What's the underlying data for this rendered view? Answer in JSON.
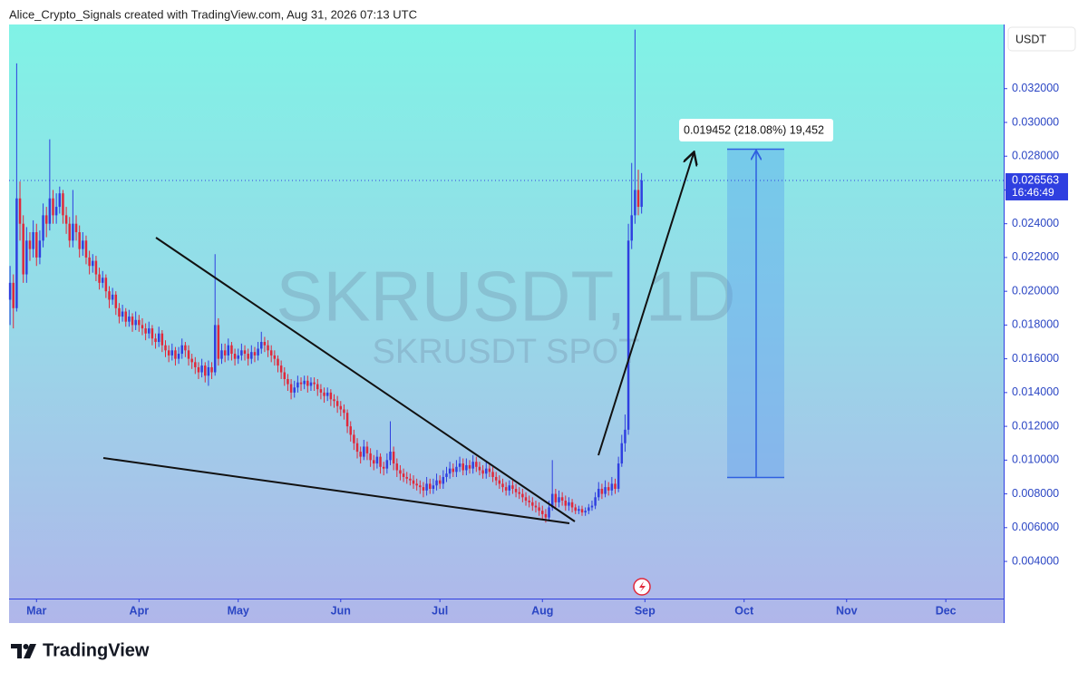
{
  "header": "Alice_Crypto_Signals created with TradingView.com, Aug 31, 2026 07:13 UTC",
  "footer_brand": "TradingView",
  "chart_data": {
    "type": "candlestick",
    "title": "SKRUSDT, 1D",
    "subtitle": "SKRUSDT SPOT",
    "currency": "USDT",
    "countdown": "16:46:49",
    "measure_label": "0.019452 (218.08%) 19,452",
    "up_color": "#2f3fe0",
    "down_color": "#e0283a",
    "xlim": [
      -0.3,
      300.5
    ],
    "xticks": [
      {
        "value": 8,
        "label": "Mar"
      },
      {
        "value": 39,
        "label": "Apr"
      },
      {
        "value": 69,
        "label": "May"
      },
      {
        "value": 100,
        "label": "Jun"
      },
      {
        "value": 130,
        "label": "Jul"
      },
      {
        "value": 161,
        "label": "Aug"
      },
      {
        "value": 192,
        "label": "Sep"
      },
      {
        "value": 222,
        "label": "Oct"
      },
      {
        "value": 253,
        "label": "Nov"
      },
      {
        "value": 283,
        "label": "Dec"
      }
    ],
    "ylim": [
      0.0018,
      0.0358
    ],
    "yticks": [
      {
        "value": 0.004,
        "label": "0.004000"
      },
      {
        "value": 0.006,
        "label": "0.006000"
      },
      {
        "value": 0.008,
        "label": "0.008000"
      },
      {
        "value": 0.01,
        "label": "0.010000"
      },
      {
        "value": 0.012,
        "label": "0.012000"
      },
      {
        "value": 0.014,
        "label": "0.014000"
      },
      {
        "value": 0.016,
        "label": "0.016000"
      },
      {
        "value": 0.018,
        "label": "0.018000"
      },
      {
        "value": 0.02,
        "label": "0.020000"
      },
      {
        "value": 0.022,
        "label": "0.022000"
      },
      {
        "value": 0.024,
        "label": "0.024000"
      },
      {
        "value": 0.026,
        "label": "0.026000"
      },
      {
        "value": 0.028,
        "label": "0.028000"
      },
      {
        "value": 0.03,
        "label": "0.030000"
      },
      {
        "value": 0.032,
        "label": "0.032000"
      }
    ],
    "candles": [
      [
        0.0195,
        0.0215,
        0.018,
        0.0205
      ],
      [
        0.0205,
        0.021,
        0.0178,
        0.019
      ],
      [
        0.019,
        0.0335,
        0.0188,
        0.0255
      ],
      [
        0.0255,
        0.0265,
        0.023,
        0.024
      ],
      [
        0.024,
        0.0245,
        0.0205,
        0.021
      ],
      [
        0.021,
        0.0238,
        0.0205,
        0.023
      ],
      [
        0.023,
        0.0235,
        0.0218,
        0.0225
      ],
      [
        0.0225,
        0.0242,
        0.022,
        0.0235
      ],
      [
        0.0235,
        0.024,
        0.0215,
        0.022
      ],
      [
        0.022,
        0.0236,
        0.0216,
        0.023
      ],
      [
        0.023,
        0.0252,
        0.0226,
        0.0245
      ],
      [
        0.0245,
        0.025,
        0.0232,
        0.024
      ],
      [
        0.024,
        0.029,
        0.0236,
        0.0255
      ],
      [
        0.0255,
        0.026,
        0.024,
        0.0245
      ],
      [
        0.0245,
        0.0258,
        0.024,
        0.025
      ],
      [
        0.025,
        0.0262,
        0.0246,
        0.0258
      ],
      [
        0.0258,
        0.026,
        0.024,
        0.0245
      ],
      [
        0.0245,
        0.025,
        0.0234,
        0.024
      ],
      [
        0.024,
        0.0244,
        0.0226,
        0.023
      ],
      [
        0.023,
        0.026,
        0.0226,
        0.024
      ],
      [
        0.024,
        0.0245,
        0.023,
        0.0235
      ],
      [
        0.0235,
        0.0239,
        0.022,
        0.0225
      ],
      [
        0.0225,
        0.0235,
        0.0221,
        0.023
      ],
      [
        0.023,
        0.0233,
        0.0216,
        0.022
      ],
      [
        0.022,
        0.0224,
        0.021,
        0.0215
      ],
      [
        0.0215,
        0.0222,
        0.0211,
        0.0218
      ],
      [
        0.0218,
        0.0221,
        0.0206,
        0.021
      ],
      [
        0.021,
        0.0214,
        0.0201,
        0.0205
      ],
      [
        0.0205,
        0.0212,
        0.0202,
        0.0208
      ],
      [
        0.0208,
        0.021,
        0.0196,
        0.02
      ],
      [
        0.02,
        0.0203,
        0.019,
        0.0195
      ],
      [
        0.0195,
        0.0202,
        0.0192,
        0.0198
      ],
      [
        0.0198,
        0.02,
        0.0186,
        0.019
      ],
      [
        0.019,
        0.0193,
        0.0181,
        0.0185
      ],
      [
        0.0185,
        0.0192,
        0.0182,
        0.0188
      ],
      [
        0.0188,
        0.019,
        0.0179,
        0.0182
      ],
      [
        0.0182,
        0.0189,
        0.0179,
        0.0185
      ],
      [
        0.0185,
        0.0187,
        0.0176,
        0.018
      ],
      [
        0.018,
        0.0188,
        0.0177,
        0.0183
      ],
      [
        0.0183,
        0.0186,
        0.0176,
        0.018
      ],
      [
        0.018,
        0.0184,
        0.0174,
        0.0178
      ],
      [
        0.0178,
        0.0181,
        0.0171,
        0.0175
      ],
      [
        0.0175,
        0.0182,
        0.0172,
        0.0178
      ],
      [
        0.0178,
        0.018,
        0.0168,
        0.0172
      ],
      [
        0.0172,
        0.0175,
        0.0166,
        0.017
      ],
      [
        0.017,
        0.0179,
        0.0167,
        0.0175
      ],
      [
        0.0175,
        0.0177,
        0.0164,
        0.0168
      ],
      [
        0.0168,
        0.0171,
        0.0161,
        0.0165
      ],
      [
        0.0165,
        0.0168,
        0.0158,
        0.0162
      ],
      [
        0.0162,
        0.0169,
        0.0159,
        0.0165
      ],
      [
        0.0165,
        0.0167,
        0.0156,
        0.016
      ],
      [
        0.016,
        0.0167,
        0.0157,
        0.0163
      ],
      [
        0.0163,
        0.0172,
        0.016,
        0.0168
      ],
      [
        0.0168,
        0.017,
        0.0161,
        0.0165
      ],
      [
        0.0165,
        0.0168,
        0.0156,
        0.016
      ],
      [
        0.016,
        0.0163,
        0.0154,
        0.0158
      ],
      [
        0.0158,
        0.0161,
        0.0151,
        0.0155
      ],
      [
        0.0155,
        0.0158,
        0.0148,
        0.0152
      ],
      [
        0.0152,
        0.016,
        0.0149,
        0.0156
      ],
      [
        0.0156,
        0.0158,
        0.0146,
        0.015
      ],
      [
        0.015,
        0.0159,
        0.0144,
        0.0155
      ],
      [
        0.0155,
        0.0158,
        0.0148,
        0.0152
      ],
      [
        0.0152,
        0.0222,
        0.015,
        0.018
      ],
      [
        0.018,
        0.0184,
        0.0156,
        0.016
      ],
      [
        0.016,
        0.0169,
        0.0157,
        0.0165
      ],
      [
        0.0165,
        0.0169,
        0.0158,
        0.0162
      ],
      [
        0.0162,
        0.0172,
        0.0159,
        0.0168
      ],
      [
        0.0168,
        0.017,
        0.0159,
        0.0163
      ],
      [
        0.0163,
        0.0166,
        0.0156,
        0.016
      ],
      [
        0.016,
        0.0166,
        0.0157,
        0.0162
      ],
      [
        0.0162,
        0.0169,
        0.0159,
        0.0165
      ],
      [
        0.0165,
        0.0168,
        0.0159,
        0.0163
      ],
      [
        0.0163,
        0.0166,
        0.0156,
        0.016
      ],
      [
        0.016,
        0.0168,
        0.0157,
        0.0164
      ],
      [
        0.0164,
        0.0167,
        0.0158,
        0.0162
      ],
      [
        0.0162,
        0.017,
        0.0159,
        0.0166
      ],
      [
        0.0166,
        0.0176,
        0.0163,
        0.017
      ],
      [
        0.017,
        0.0173,
        0.0164,
        0.0168
      ],
      [
        0.0168,
        0.0171,
        0.0161,
        0.0165
      ],
      [
        0.0165,
        0.0168,
        0.0158,
        0.0162
      ],
      [
        0.0162,
        0.0165,
        0.0156,
        0.016
      ],
      [
        0.016,
        0.0162,
        0.0152,
        0.0156
      ],
      [
        0.0156,
        0.0159,
        0.0148,
        0.0152
      ],
      [
        0.0152,
        0.0155,
        0.0144,
        0.0148
      ],
      [
        0.0148,
        0.0151,
        0.0141,
        0.0145
      ],
      [
        0.0145,
        0.0148,
        0.0136,
        0.014
      ],
      [
        0.014,
        0.0147,
        0.0137,
        0.0143
      ],
      [
        0.0143,
        0.015,
        0.014,
        0.0146
      ],
      [
        0.0146,
        0.0149,
        0.0141,
        0.0145
      ],
      [
        0.0145,
        0.015,
        0.0142,
        0.0147
      ],
      [
        0.0147,
        0.015,
        0.014,
        0.0144
      ],
      [
        0.0144,
        0.0149,
        0.0141,
        0.0146
      ],
      [
        0.0146,
        0.0149,
        0.0141,
        0.0145
      ],
      [
        0.0145,
        0.0148,
        0.0138,
        0.0142
      ],
      [
        0.0142,
        0.0145,
        0.0136,
        0.014
      ],
      [
        0.014,
        0.0143,
        0.0134,
        0.0138
      ],
      [
        0.0138,
        0.0143,
        0.0135,
        0.014
      ],
      [
        0.014,
        0.0142,
        0.0132,
        0.0136
      ],
      [
        0.0136,
        0.0139,
        0.0131,
        0.0135
      ],
      [
        0.0135,
        0.0138,
        0.0128,
        0.0132
      ],
      [
        0.0132,
        0.0135,
        0.0126,
        0.013
      ],
      [
        0.013,
        0.0133,
        0.0124,
        0.0128
      ],
      [
        0.0128,
        0.013,
        0.0116,
        0.012
      ],
      [
        0.012,
        0.0123,
        0.0111,
        0.0115
      ],
      [
        0.0115,
        0.0118,
        0.0106,
        0.011
      ],
      [
        0.011,
        0.0113,
        0.0101,
        0.0105
      ],
      [
        0.0105,
        0.0108,
        0.0098,
        0.0102
      ],
      [
        0.0102,
        0.0112,
        0.01,
        0.0108
      ],
      [
        0.0108,
        0.0111,
        0.01,
        0.0104
      ],
      [
        0.0104,
        0.0107,
        0.0096,
        0.01
      ],
      [
        0.01,
        0.0103,
        0.0094,
        0.0098
      ],
      [
        0.0098,
        0.0106,
        0.0095,
        0.0102
      ],
      [
        0.0102,
        0.0104,
        0.0092,
        0.0096
      ],
      [
        0.0096,
        0.0099,
        0.0091,
        0.0095
      ],
      [
        0.0095,
        0.0104,
        0.0092,
        0.01
      ],
      [
        0.01,
        0.0123,
        0.0097,
        0.0105
      ],
      [
        0.0105,
        0.0108,
        0.0094,
        0.0098
      ],
      [
        0.0098,
        0.0101,
        0.009,
        0.0094
      ],
      [
        0.0094,
        0.0097,
        0.0088,
        0.0092
      ],
      [
        0.0092,
        0.0095,
        0.0087,
        0.009
      ],
      [
        0.009,
        0.0093,
        0.0086,
        0.0089
      ],
      [
        0.0089,
        0.0092,
        0.0085,
        0.0088
      ],
      [
        0.0088,
        0.0091,
        0.0083,
        0.0086
      ],
      [
        0.0086,
        0.0089,
        0.0082,
        0.0085
      ],
      [
        0.0085,
        0.0088,
        0.008,
        0.0084
      ],
      [
        0.0084,
        0.0087,
        0.0078,
        0.0082
      ],
      [
        0.0082,
        0.009,
        0.0079,
        0.0086
      ],
      [
        0.0086,
        0.0089,
        0.008,
        0.0083
      ],
      [
        0.0083,
        0.0089,
        0.008,
        0.0085
      ],
      [
        0.0085,
        0.0092,
        0.0082,
        0.0088
      ],
      [
        0.0088,
        0.0091,
        0.0083,
        0.0086
      ],
      [
        0.0086,
        0.0094,
        0.0083,
        0.009
      ],
      [
        0.009,
        0.0096,
        0.0087,
        0.0092
      ],
      [
        0.0092,
        0.0099,
        0.0089,
        0.0095
      ],
      [
        0.0095,
        0.0098,
        0.009,
        0.0093
      ],
      [
        0.0093,
        0.01,
        0.009,
        0.0096
      ],
      [
        0.0096,
        0.0102,
        0.0093,
        0.0098
      ],
      [
        0.0098,
        0.0101,
        0.0091,
        0.0094
      ],
      [
        0.0094,
        0.0101,
        0.0091,
        0.0097
      ],
      [
        0.0097,
        0.01,
        0.0092,
        0.0095
      ],
      [
        0.0095,
        0.0103,
        0.0092,
        0.0099
      ],
      [
        0.0099,
        0.0102,
        0.0093,
        0.0096
      ],
      [
        0.0096,
        0.0099,
        0.0091,
        0.0094
      ],
      [
        0.0094,
        0.0097,
        0.0089,
        0.0092
      ],
      [
        0.0092,
        0.0099,
        0.0089,
        0.0095
      ],
      [
        0.0095,
        0.0098,
        0.009,
        0.0093
      ],
      [
        0.0093,
        0.0096,
        0.0087,
        0.009
      ],
      [
        0.009,
        0.0093,
        0.0085,
        0.0088
      ],
      [
        0.0088,
        0.0091,
        0.0083,
        0.0086
      ],
      [
        0.0086,
        0.0089,
        0.0081,
        0.0084
      ],
      [
        0.0084,
        0.0087,
        0.0079,
        0.0082
      ],
      [
        0.0082,
        0.0088,
        0.0079,
        0.0085
      ],
      [
        0.0085,
        0.0088,
        0.008,
        0.0083
      ],
      [
        0.0083,
        0.0086,
        0.0078,
        0.0081
      ],
      [
        0.0081,
        0.0084,
        0.0077,
        0.008
      ],
      [
        0.008,
        0.0083,
        0.0075,
        0.0078
      ],
      [
        0.0078,
        0.0081,
        0.0073,
        0.0076
      ],
      [
        0.0076,
        0.0079,
        0.0072,
        0.0075
      ],
      [
        0.0075,
        0.0078,
        0.007,
        0.0073
      ],
      [
        0.0073,
        0.0076,
        0.0069,
        0.0072
      ],
      [
        0.0072,
        0.0075,
        0.0067,
        0.007
      ],
      [
        0.007,
        0.0073,
        0.0065,
        0.0068
      ],
      [
        0.0068,
        0.0071,
        0.0063,
        0.0066
      ],
      [
        0.0066,
        0.0076,
        0.0064,
        0.0072
      ],
      [
        0.0072,
        0.01,
        0.007,
        0.008
      ],
      [
        0.008,
        0.0083,
        0.0072,
        0.0075
      ],
      [
        0.0075,
        0.0082,
        0.0072,
        0.0078
      ],
      [
        0.0078,
        0.0081,
        0.0073,
        0.0076
      ],
      [
        0.0076,
        0.0079,
        0.007,
        0.0073
      ],
      [
        0.0073,
        0.0078,
        0.007,
        0.0075
      ],
      [
        0.0075,
        0.0077,
        0.0069,
        0.0072
      ],
      [
        0.0072,
        0.0074,
        0.0068,
        0.007
      ],
      [
        0.007,
        0.0073,
        0.0068,
        0.0071
      ],
      [
        0.0071,
        0.0073,
        0.0067,
        0.0069
      ],
      [
        0.0069,
        0.0072,
        0.0067,
        0.007
      ],
      [
        0.007,
        0.0074,
        0.0068,
        0.0072
      ],
      [
        0.0072,
        0.0076,
        0.007,
        0.0073
      ],
      [
        0.0073,
        0.0081,
        0.0071,
        0.0078
      ],
      [
        0.0078,
        0.0087,
        0.0076,
        0.0083
      ],
      [
        0.0083,
        0.0086,
        0.0077,
        0.008
      ],
      [
        0.008,
        0.0088,
        0.0078,
        0.0084
      ],
      [
        0.0084,
        0.0087,
        0.0079,
        0.0082
      ],
      [
        0.0082,
        0.009,
        0.0079,
        0.0086
      ],
      [
        0.0086,
        0.0089,
        0.008,
        0.0083
      ],
      [
        0.0083,
        0.0102,
        0.0081,
        0.0098
      ],
      [
        0.0098,
        0.0115,
        0.0096,
        0.011
      ],
      [
        0.011,
        0.0127,
        0.0105,
        0.0118
      ],
      [
        0.0118,
        0.024,
        0.0115,
        0.023
      ],
      [
        0.023,
        0.0276,
        0.0225,
        0.0245
      ],
      [
        0.0245,
        0.0355,
        0.024,
        0.026
      ],
      [
        0.026,
        0.0272,
        0.0245,
        0.025
      ],
      [
        0.025,
        0.027,
        0.0246,
        0.026563
      ]
    ]
  }
}
